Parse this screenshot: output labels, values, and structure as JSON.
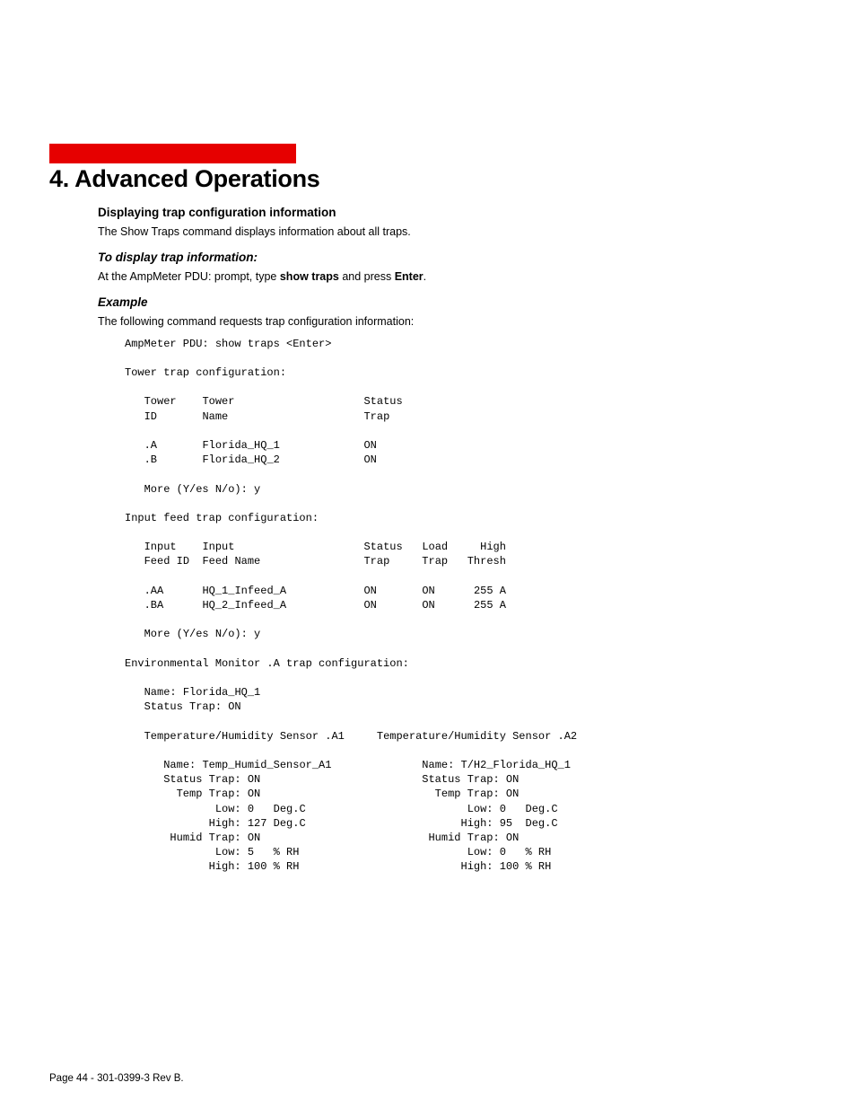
{
  "chapter": {
    "number": "4.",
    "title": "Advanced Operations"
  },
  "section": {
    "heading": "Displaying trap configuration information",
    "intro": "The Show Traps command displays information about all traps.",
    "subhead1": "To display trap information:",
    "instruction_pre": "At the AmpMeter PDU: prompt, type ",
    "instruction_cmd": "show traps",
    "instruction_mid": " and press ",
    "instruction_key": "Enter",
    "instruction_post": ".",
    "example_label": "Example",
    "example_caption": "The following command requests trap configuration information:"
  },
  "terminal": {
    "prompt": "AmpMeter PDU: show traps <Enter>",
    "tower": {
      "title": "Tower trap configuration:",
      "header": {
        "c1a": "Tower",
        "c2a": "Tower",
        "c3a": "Status",
        "c1b": "ID",
        "c2b": "Name",
        "c3b": "Trap"
      },
      "rows": [
        {
          "id": ".A",
          "name": "Florida_HQ_1",
          "trap": "ON"
        },
        {
          "id": ".B",
          "name": "Florida_HQ_2",
          "trap": "ON"
        }
      ],
      "more": "More (Y/es N/o): y"
    },
    "feed": {
      "title": "Input feed trap configuration:",
      "header": {
        "c1a": "Input",
        "c2a": "Input",
        "c3a": "Status",
        "c4a": "Load",
        "c5a": "High",
        "c1b": "Feed ID",
        "c2b": "Feed Name",
        "c3b": "Trap",
        "c4b": "Trap",
        "c5b": "Thresh"
      },
      "rows": [
        {
          "id": ".AA",
          "name": "HQ_1_Infeed_A",
          "status": "ON",
          "load": "ON",
          "thresh": "255 A"
        },
        {
          "id": ".BA",
          "name": "HQ_2_Infeed_A",
          "status": "ON",
          "load": "ON",
          "thresh": "255 A"
        }
      ],
      "more": "More (Y/es N/o): y"
    },
    "env": {
      "title": "Environmental Monitor .A trap configuration:",
      "name_label": "Name:",
      "name_value": "Florida_HQ_1",
      "status_label": "Status Trap:",
      "status_value": "ON",
      "sensors": {
        "left": {
          "title": "Temperature/Humidity Sensor .A1",
          "name_label": "Name:",
          "name_value": "Temp_Humid_Sensor_A1",
          "status_label": "Status Trap:",
          "status_value": "ON",
          "temp_label": "Temp Trap:",
          "temp_value": "ON",
          "temp_low_label": "Low:",
          "temp_low_value": "0",
          "temp_unit": "Deg.C",
          "temp_high_label": "High:",
          "temp_high_value": "127",
          "humid_label": "Humid Trap:",
          "humid_value": "ON",
          "humid_low_label": "Low:",
          "humid_low_value": "5",
          "humid_unit": "% RH",
          "humid_high_label": "High:",
          "humid_high_value": "100"
        },
        "right": {
          "title": "Temperature/Humidity Sensor .A2",
          "name_label": "Name:",
          "name_value": "T/H2_Florida_HQ_1",
          "status_label": "Status Trap:",
          "status_value": "ON",
          "temp_label": "Temp Trap:",
          "temp_value": "ON",
          "temp_low_label": "Low:",
          "temp_low_value": "0",
          "temp_unit": "Deg.C",
          "temp_high_label": "High:",
          "temp_high_value": "95",
          "humid_label": "Humid Trap:",
          "humid_value": "ON",
          "humid_low_label": "Low:",
          "humid_low_value": "0",
          "humid_unit": "% RH",
          "humid_high_label": "High:",
          "humid_high_value": "100"
        }
      }
    }
  },
  "footer": "Page 44 - 301-0399-3 Rev B."
}
